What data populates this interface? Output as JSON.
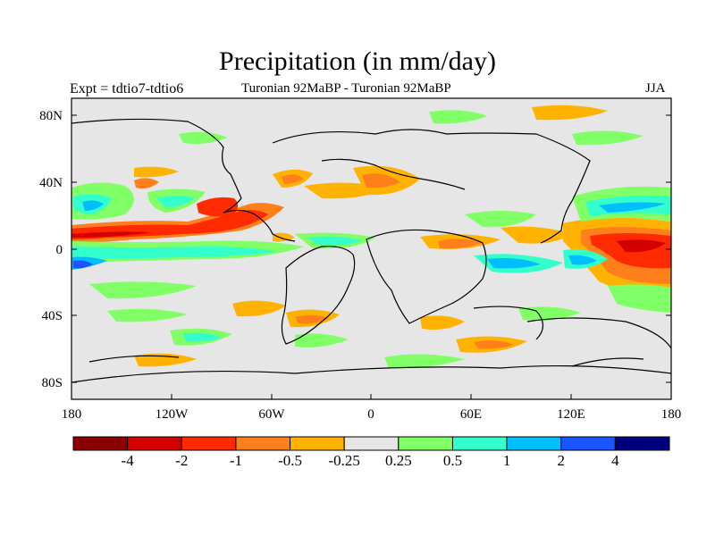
{
  "figure": {
    "title": "Precipitation (in mm/day)",
    "left_label": "Expt = tdtio7-tdtio6",
    "center_label": "Turonian  92MaBP - Turonian  92MaBP",
    "right_label": "JJA"
  },
  "axes": {
    "lat_ticks": [
      "80N",
      "40N",
      "0",
      "40S",
      "80S"
    ],
    "lon_ticks": [
      "180",
      "120W",
      "60W",
      "0",
      "60E",
      "120E",
      "180"
    ]
  },
  "colorbar": {
    "labels": [
      "-4",
      "-2",
      "-1",
      "-0.5",
      "-0.25",
      "0.25",
      "0.5",
      "1",
      "2",
      "4"
    ],
    "colors": [
      "#8b0000",
      "#d40000",
      "#ff2a00",
      "#ff7f1a",
      "#ffb300",
      "#e6e6e6",
      "#80ff66",
      "#33ffcc",
      "#00bfff",
      "#1a55ff",
      "#00007f"
    ]
  },
  "map_colors": {
    "background": "#e6e6e6",
    "coast": "#000000"
  }
}
